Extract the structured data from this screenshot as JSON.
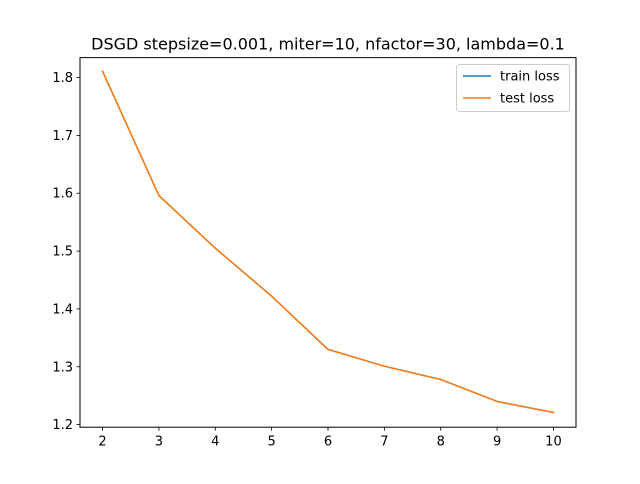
{
  "chart_data": {
    "type": "line",
    "title": "DSGD stepsize=0.001, miter=10, nfactor=30, lambda=0.1",
    "xlabel": "",
    "ylabel": "",
    "x": [
      2,
      3,
      4,
      5,
      6,
      7,
      8,
      9,
      10
    ],
    "xlim": [
      1.6,
      10.4
    ],
    "ylim": [
      1.1955,
      1.8345
    ],
    "xticks": [
      "2",
      "3",
      "4",
      "5",
      "6",
      "7",
      "8",
      "9",
      "10"
    ],
    "yticks": [
      "1.2",
      "1.3",
      "1.4",
      "1.5",
      "1.6",
      "1.7",
      "1.8"
    ],
    "grid": false,
    "legend_position": "top-right",
    "series": [
      {
        "name": "train loss",
        "color": "#1f77b4",
        "values": [
          1.811,
          1.596,
          1.505,
          1.422,
          1.33,
          1.301,
          1.278,
          1.24,
          1.221
        ]
      },
      {
        "name": "test loss",
        "color": "#ff7f0e",
        "values": [
          1.811,
          1.596,
          1.505,
          1.422,
          1.33,
          1.301,
          1.278,
          1.24,
          1.221
        ]
      }
    ]
  }
}
